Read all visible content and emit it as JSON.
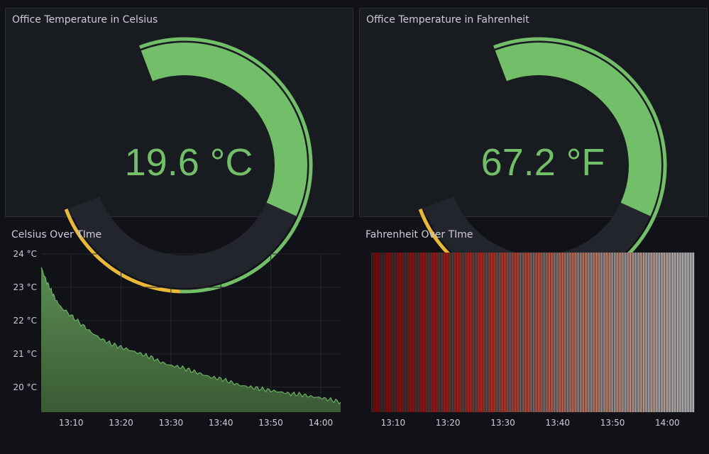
{
  "colors": {
    "background": "#111217",
    "panel": "#181b1f",
    "green": "#73bf69",
    "yellow": "#eab839",
    "track": "#22252b"
  },
  "gauge_celsius": {
    "title": "Office Temperature in Celsius",
    "value_text": "19.6 °C",
    "value": 19.6,
    "fill_fraction": 0.5,
    "thresholds": {
      "green_until": 0.75,
      "yellow_until": 1.0
    }
  },
  "gauge_fahrenheit": {
    "title": "Office Temperature in Fahrenheit",
    "value_text": "67.2 °F",
    "value": 67.2,
    "fill_fraction": 0.5,
    "thresholds": {
      "green_until": 0.75,
      "yellow_until": 1.0
    }
  },
  "chart_data": [
    {
      "type": "area",
      "title": "Celsius Over TIme",
      "y_ticks": [
        "24 °C",
        "23 °C",
        "22 °C",
        "21 °C",
        "20 °C"
      ],
      "x_ticks": [
        "13:10",
        "13:20",
        "13:30",
        "13:40",
        "13:50",
        "14:00"
      ],
      "ylim": [
        19.25,
        24
      ],
      "xlim": [
        "13:04",
        "14:04"
      ],
      "grid": true,
      "series": [
        {
          "color": "#73bf69",
          "x": [
            "13:04",
            "13:05",
            "13:06",
            "13:07",
            "13:08",
            "13:10",
            "13:12",
            "13:14",
            "13:16",
            "13:18",
            "13:20",
            "13:22",
            "13:24",
            "13:26",
            "13:28",
            "13:30",
            "13:32",
            "13:34",
            "13:36",
            "13:38",
            "13:40",
            "13:42",
            "13:44",
            "13:46",
            "13:48",
            "13:50",
            "13:52",
            "13:54",
            "13:56",
            "13:58",
            "14:00",
            "14:02",
            "14:04"
          ],
          "y": [
            23.6,
            23.2,
            22.9,
            22.6,
            22.4,
            22.15,
            21.9,
            21.65,
            21.45,
            21.3,
            21.2,
            21.1,
            21.0,
            20.9,
            20.75,
            20.65,
            20.6,
            20.5,
            20.4,
            20.3,
            20.25,
            20.15,
            20.05,
            20.0,
            19.95,
            19.9,
            19.85,
            19.8,
            19.78,
            19.72,
            19.68,
            19.62,
            19.55
          ]
        }
      ]
    },
    {
      "type": "heatmap",
      "title": "Fahrenheit Over TIme",
      "x_ticks": [
        "13:10",
        "13:20",
        "13:30",
        "13:40",
        "13:50",
        "14:00"
      ],
      "xlim": [
        "13:06",
        "14:05"
      ],
      "color_scale": [
        "#7a0c0c",
        "#c0392b",
        "#e8a48c",
        "#f3f3f3"
      ]
    }
  ]
}
